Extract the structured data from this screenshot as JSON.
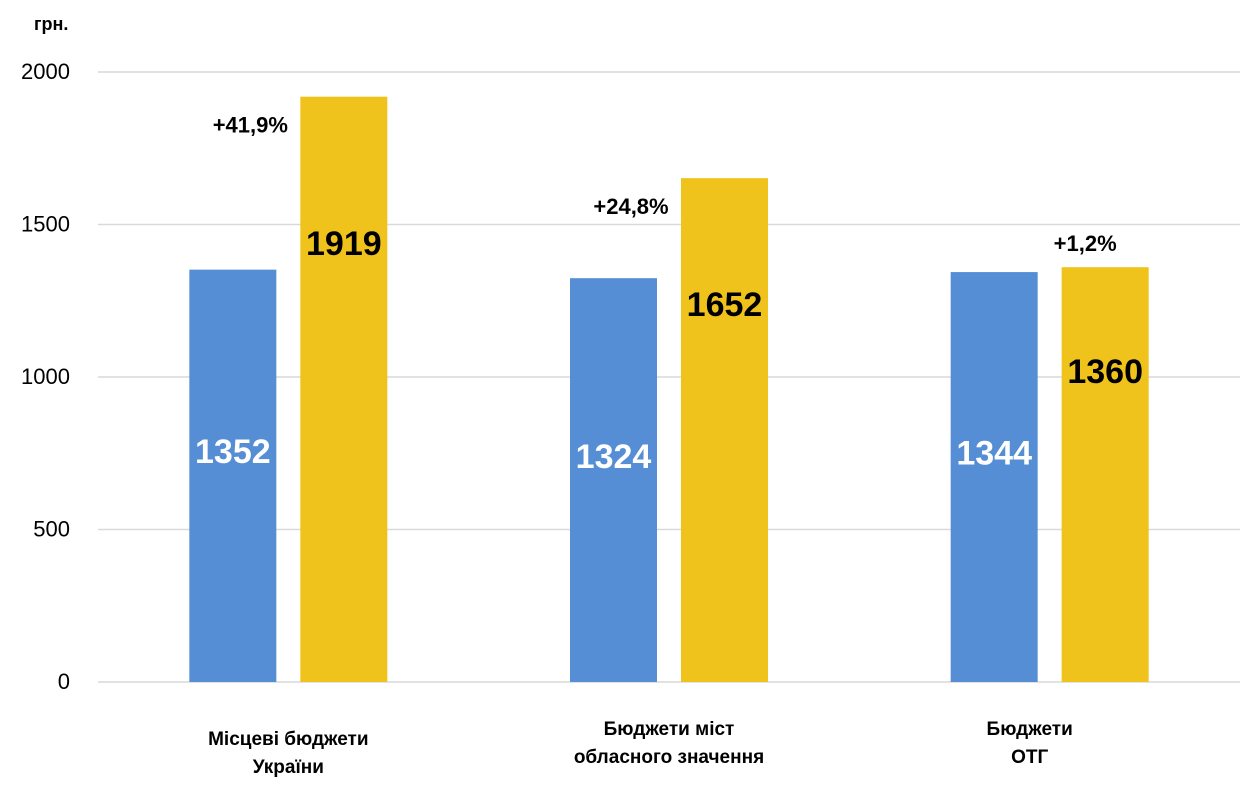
{
  "chart_data": {
    "type": "bar",
    "ylabel": "грн.",
    "ylim": [
      0,
      2000
    ],
    "yticks": [
      0,
      500,
      1000,
      1500,
      2000
    ],
    "grid": true,
    "categories": [
      [
        "Місцеві бюджети",
        "України"
      ],
      [
        "Бюджети  міст",
        "обласного значення"
      ],
      [
        "Бюджети",
        "ОТГ"
      ]
    ],
    "series": [
      {
        "values": [
          1352,
          1324,
          1344
        ],
        "color": "#558ED5",
        "label_color": "#FFFFFF"
      },
      {
        "values": [
          1919,
          1652,
          1360
        ],
        "color": "#F0C21C",
        "label_color": "#000000"
      }
    ],
    "annotations": [
      "+41,9%",
      "+24,8%",
      "+1,2%"
    ]
  }
}
